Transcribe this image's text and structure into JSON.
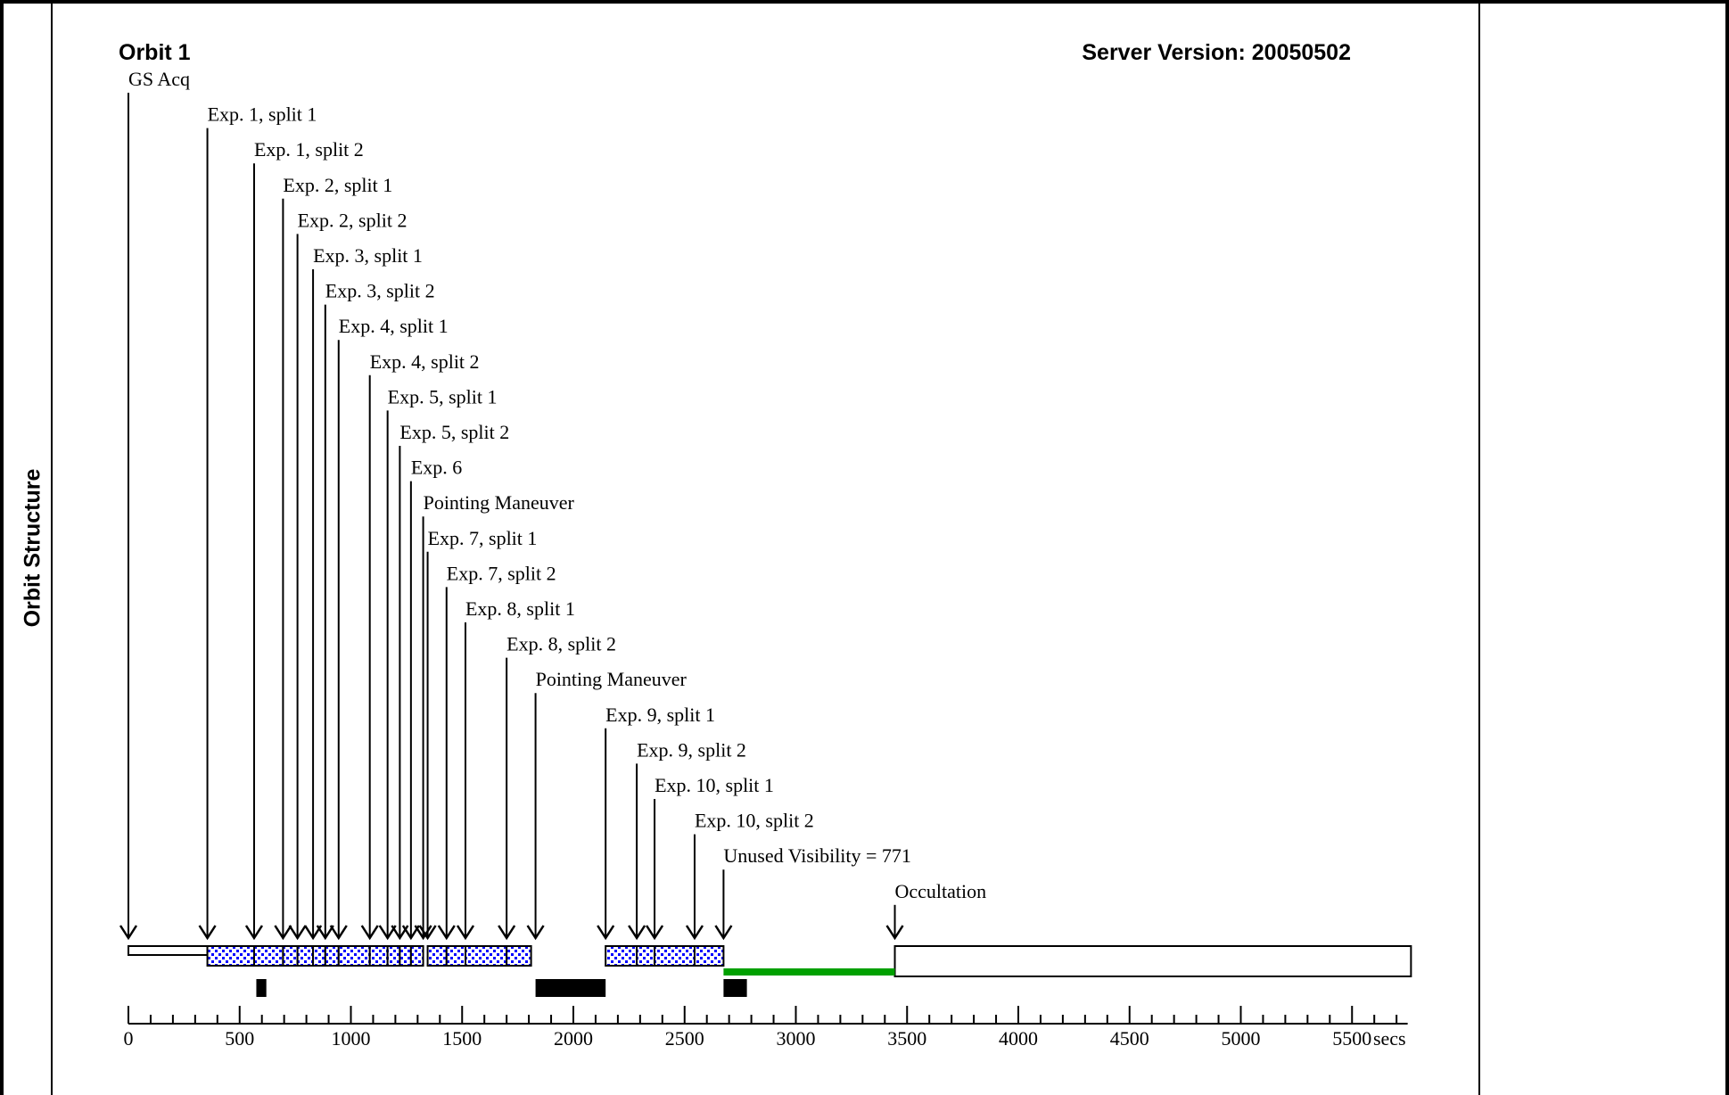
{
  "section_label": "Orbit Structure",
  "orbit_title": "Orbit 1",
  "server_version": "Server Version: 20050502",
  "axis_unit": "secs",
  "axis": {
    "min": 0,
    "max": 5750,
    "major_step": 500,
    "minor_step": 100,
    "tick_labels": [
      "0",
      "500",
      "1000",
      "1500",
      "2000",
      "2500",
      "3000",
      "3500",
      "4000",
      "4500",
      "5000",
      "5500"
    ]
  },
  "events": [
    {
      "label": "GS Acq",
      "time": 0
    },
    {
      "label": "Exp. 1, split 1",
      "time": 355
    },
    {
      "label": "Exp. 1, split 2",
      "time": 565
    },
    {
      "label": "Exp. 2, split 1",
      "time": 695
    },
    {
      "label": "Exp. 2, split 2",
      "time": 760
    },
    {
      "label": "Exp. 3, split 1",
      "time": 830
    },
    {
      "label": "Exp. 3, split 2",
      "time": 885
    },
    {
      "label": "Exp. 4, split 1",
      "time": 945
    },
    {
      "label": "Exp. 4, split 2",
      "time": 1085
    },
    {
      "label": "Exp. 5, split 1",
      "time": 1165
    },
    {
      "label": "Exp. 5, split 2",
      "time": 1220
    },
    {
      "label": "Exp. 6",
      "time": 1270
    },
    {
      "label": "Pointing Maneuver",
      "time": 1325
    },
    {
      "label": "Exp. 7, split 1",
      "time": 1345
    },
    {
      "label": "Exp. 7, split 2",
      "time": 1430
    },
    {
      "label": "Exp. 8, split 1",
      "time": 1515
    },
    {
      "label": "Exp. 8, split 2",
      "time": 1700
    },
    {
      "label": "Pointing Maneuver",
      "time": 1830
    },
    {
      "label": "Exp. 9, split 1",
      "time": 2145
    },
    {
      "label": "Exp. 9, split 2",
      "time": 2285
    },
    {
      "label": "Exp. 10, split 1",
      "time": 2365
    },
    {
      "label": "Exp. 10, split 2",
      "time": 2545
    },
    {
      "label": "Unused Visibility = 771",
      "time": 2675
    },
    {
      "label": "Occultation",
      "time": 3445
    }
  ],
  "bars": [
    {
      "kind": "gs-acquisition",
      "start": 0,
      "end": 355
    },
    {
      "kind": "exposure",
      "start": 355,
      "end": 565
    },
    {
      "kind": "exposure",
      "start": 565,
      "end": 695
    },
    {
      "kind": "exposure",
      "start": 695,
      "end": 760
    },
    {
      "kind": "exposure",
      "start": 760,
      "end": 830
    },
    {
      "kind": "exposure",
      "start": 830,
      "end": 885
    },
    {
      "kind": "exposure",
      "start": 885,
      "end": 945
    },
    {
      "kind": "exposure",
      "start": 945,
      "end": 1085
    },
    {
      "kind": "exposure",
      "start": 1085,
      "end": 1165
    },
    {
      "kind": "exposure",
      "start": 1165,
      "end": 1220
    },
    {
      "kind": "exposure",
      "start": 1220,
      "end": 1270
    },
    {
      "kind": "exposure",
      "start": 1270,
      "end": 1325
    },
    {
      "kind": "exposure",
      "start": 1345,
      "end": 1430
    },
    {
      "kind": "exposure",
      "start": 1430,
      "end": 1515
    },
    {
      "kind": "exposure",
      "start": 1515,
      "end": 1700
    },
    {
      "kind": "exposure",
      "start": 1700,
      "end": 1810
    },
    {
      "kind": "exposure",
      "start": 2145,
      "end": 2285
    },
    {
      "kind": "exposure",
      "start": 2285,
      "end": 2365
    },
    {
      "kind": "exposure",
      "start": 2365,
      "end": 2545
    },
    {
      "kind": "exposure",
      "start": 2545,
      "end": 2675
    },
    {
      "kind": "occultation",
      "start": 3445,
      "end": 5765
    }
  ],
  "unused_visibility": {
    "start": 2675,
    "end": 3445
  },
  "overheads": [
    {
      "start": 575,
      "end": 620
    },
    {
      "start": 1830,
      "end": 2145
    },
    {
      "start": 2675,
      "end": 2780
    }
  ],
  "colors": {
    "exposure_fill": "#0000ff",
    "unused_visibility": "#00a000",
    "overhead": "#000000",
    "frame": "#000000"
  }
}
